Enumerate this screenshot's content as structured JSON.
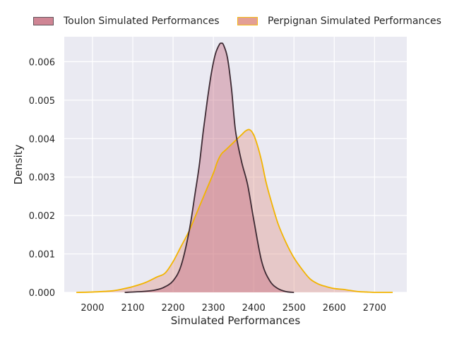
{
  "chart_data": {
    "type": "area",
    "title": "",
    "xlabel": "Simulated Performances",
    "ylabel": "Density",
    "xlim": [
      1930,
      2780
    ],
    "ylim": [
      0,
      0.00665
    ],
    "xticks": [
      2000,
      2100,
      2200,
      2300,
      2400,
      2500,
      2600,
      2700
    ],
    "yticks": [
      0.0,
      0.001,
      0.002,
      0.003,
      0.004,
      0.005,
      0.006
    ],
    "ytick_labels": [
      "0.000",
      "0.001",
      "0.002",
      "0.003",
      "0.004",
      "0.005",
      "0.006"
    ],
    "grid": true,
    "legend_position": "top",
    "series": [
      {
        "name": "Toulon Simulated Performances",
        "fill": "#c4677a",
        "stroke": "#3d2a33",
        "x": [
          2080,
          2120,
          2150,
          2175,
          2200,
          2220,
          2240,
          2255,
          2265,
          2275,
          2285,
          2295,
          2305,
          2315,
          2320,
          2325,
          2335,
          2345,
          2355,
          2370,
          2385,
          2400,
          2420,
          2440,
          2460,
          2480,
          2500
        ],
        "y": [
          0.0,
          2e-05,
          5e-05,
          0.00012,
          0.0003,
          0.0007,
          0.0016,
          0.0026,
          0.0033,
          0.0042,
          0.005,
          0.0057,
          0.0062,
          0.00645,
          0.00648,
          0.00644,
          0.0061,
          0.0053,
          0.0042,
          0.0034,
          0.0028,
          0.0019,
          0.0008,
          0.0003,
          0.0001,
          2e-05,
          0.0
        ]
      },
      {
        "name": "Perpignan Simulated Performances",
        "fill": "#e0958a",
        "stroke": "#f2b400",
        "x": [
          1960,
          2000,
          2050,
          2080,
          2100,
          2130,
          2160,
          2180,
          2200,
          2220,
          2240,
          2260,
          2280,
          2300,
          2310,
          2320,
          2330,
          2340,
          2350,
          2360,
          2370,
          2380,
          2390,
          2400,
          2410,
          2420,
          2430,
          2440,
          2460,
          2480,
          2500,
          2520,
          2540,
          2560,
          2580,
          2600,
          2620,
          2640,
          2660,
          2680,
          2700,
          2720,
          2745
        ],
        "y": [
          0.0,
          1e-05,
          4e-05,
          0.0001,
          0.00015,
          0.00025,
          0.0004,
          0.0005,
          0.0008,
          0.0012,
          0.0016,
          0.0021,
          0.0026,
          0.0031,
          0.0034,
          0.0036,
          0.0037,
          0.0038,
          0.0039,
          0.004,
          0.0041,
          0.0042,
          0.00423,
          0.0041,
          0.0038,
          0.0034,
          0.0029,
          0.0025,
          0.0018,
          0.0013,
          0.0009,
          0.0006,
          0.00035,
          0.00022,
          0.00015,
          0.0001,
          8e-05,
          5e-05,
          2e-05,
          1e-05,
          0.0,
          0.0,
          0.0
        ]
      }
    ]
  }
}
